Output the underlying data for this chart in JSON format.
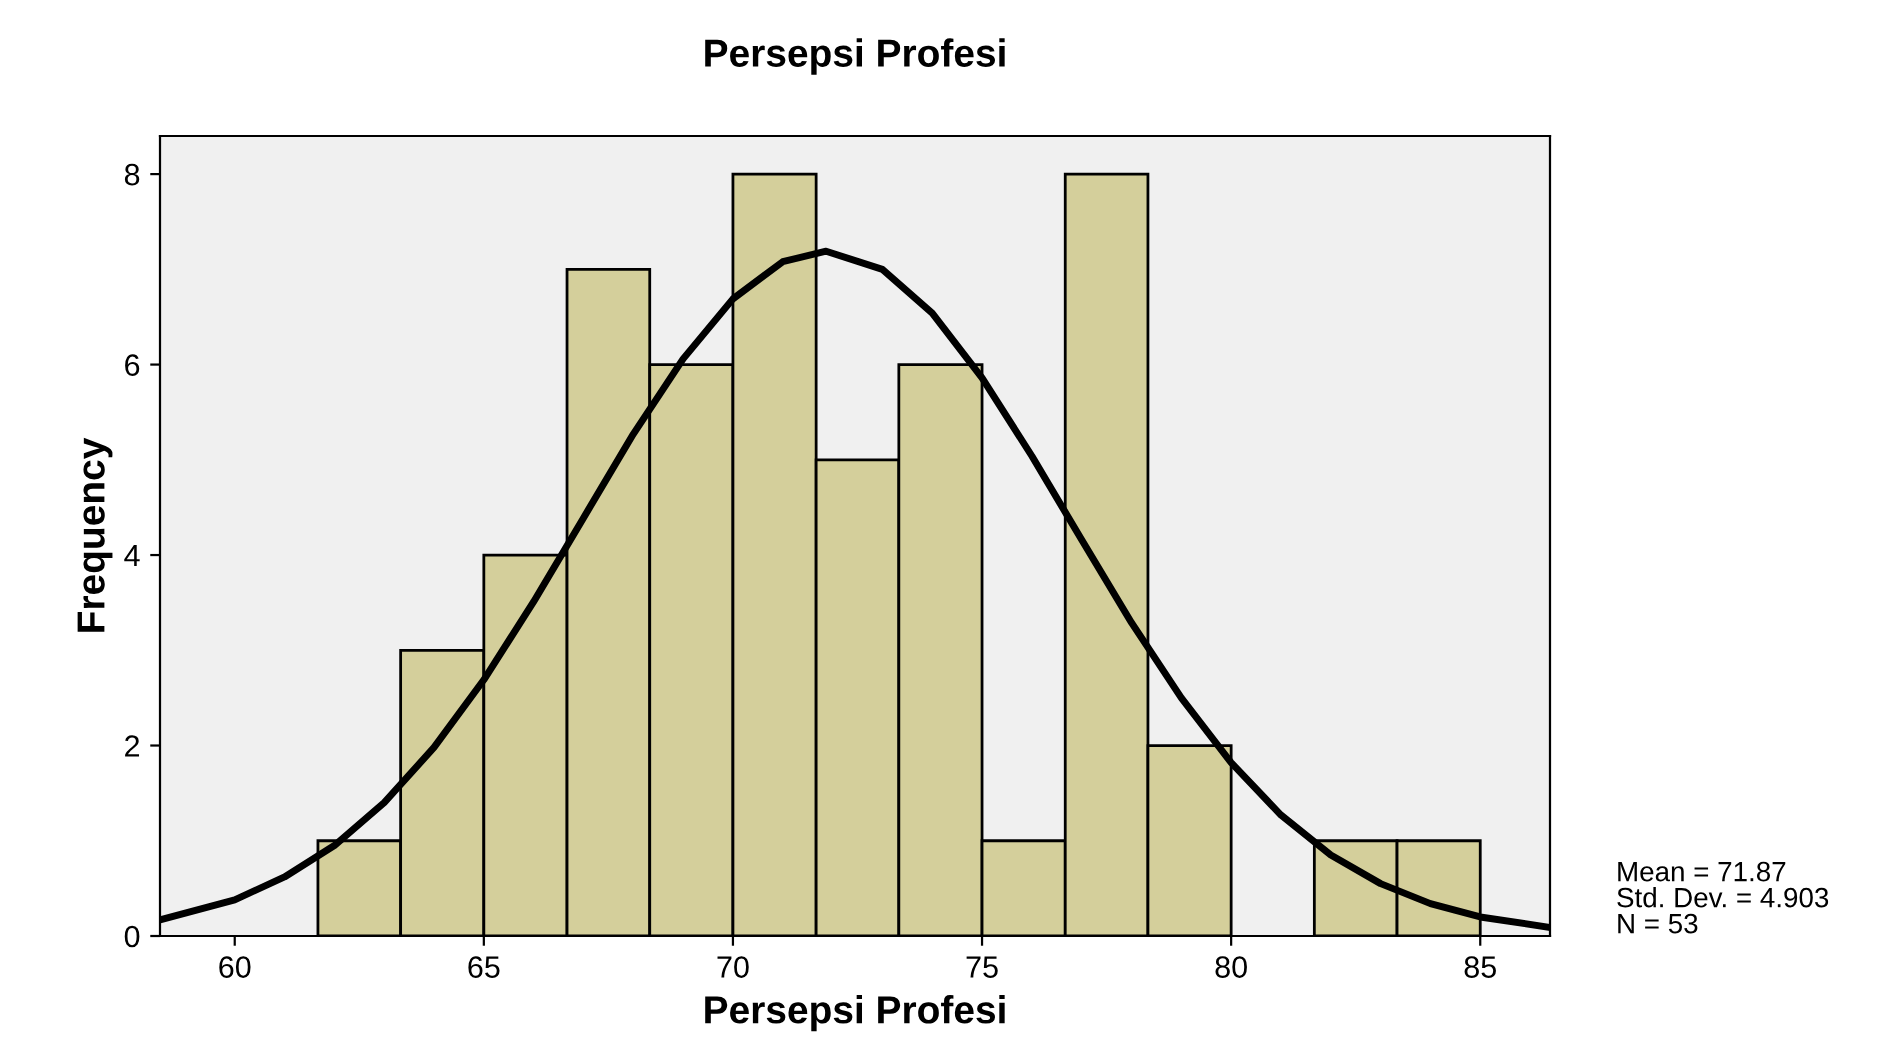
{
  "chart_data": {
    "type": "histogram",
    "title": "Persepsi Profesi",
    "xlabel": "Persepsi Profesi",
    "ylabel": "Frequency",
    "series": [
      {
        "color": "#d4cf9b",
        "bins": [
          61.67,
          63.33,
          65.0,
          66.67,
          68.33,
          70.0,
          71.67,
          73.33,
          75.0,
          76.67,
          78.33,
          80.0,
          81.67,
          83.33,
          85.0
        ],
        "values": [
          1,
          3,
          4,
          7,
          6,
          8,
          5,
          6,
          1,
          8,
          2,
          0,
          1,
          1
        ]
      },
      {
        "type": "line",
        "color": "#000000",
        "x": [
          58.5,
          60,
          61,
          62,
          63,
          64,
          65,
          66,
          67,
          68,
          69,
          70,
          71,
          71.87,
          73,
          74,
          75,
          76,
          77,
          78,
          79,
          80,
          81,
          82,
          83,
          84,
          85,
          86.4
        ],
        "values": [
          0.17,
          0.38,
          0.62,
          0.95,
          1.4,
          1.98,
          2.69,
          3.51,
          4.39,
          5.27,
          6.06,
          6.69,
          7.08,
          7.19,
          7.0,
          6.54,
          5.86,
          5.04,
          4.16,
          3.29,
          2.5,
          1.82,
          1.27,
          0.85,
          0.55,
          0.34,
          0.2,
          0.09
        ]
      }
    ],
    "xlim": [
      58.5,
      86.4
    ],
    "ylim": [
      0,
      8.4
    ],
    "xticks": [
      60,
      65,
      70,
      75,
      80,
      85
    ],
    "yticks": [
      0,
      2,
      4,
      6,
      8
    ],
    "grid": false,
    "legend": false,
    "annotations": [
      "Mean = 71.87",
      "Std. Dev. = 4.903",
      "N = 53"
    ]
  }
}
